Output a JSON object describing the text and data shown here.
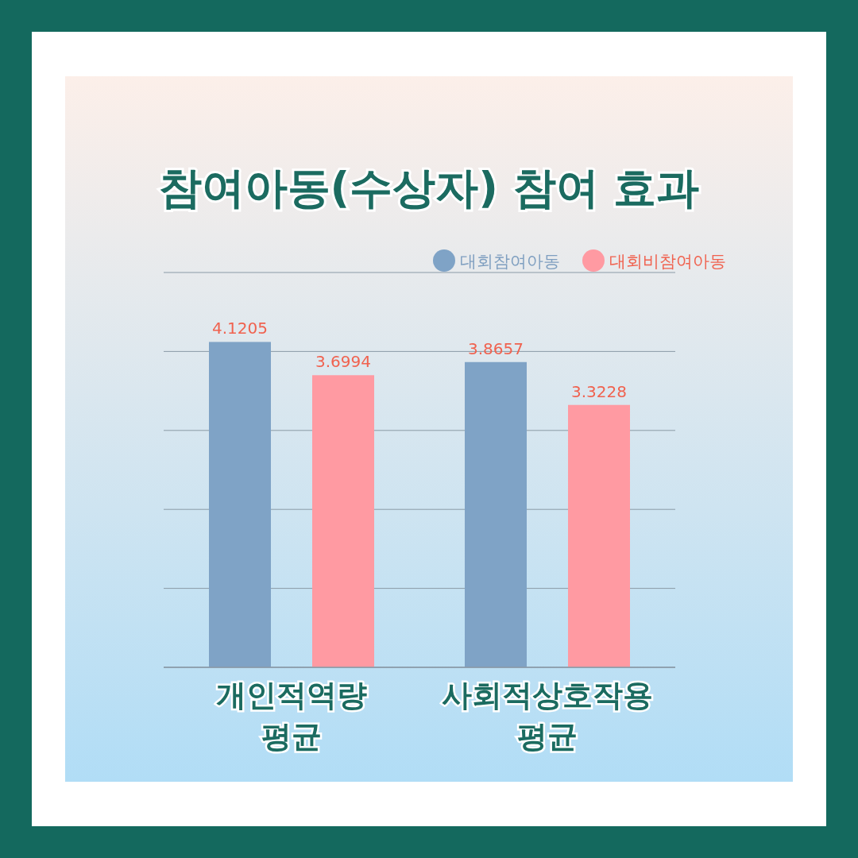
{
  "chart_data": {
    "type": "bar",
    "title": "참여아동(수상자) 참여 효과",
    "categories": [
      "개인적역량\n평균",
      "사회적상호작용\n평균"
    ],
    "series": [
      {
        "name": "대회참여아동",
        "color": "#7fa3c6",
        "values": [
          4.1205,
          3.8657
        ]
      },
      {
        "name": "대회비참여아동",
        "color": "#ff9aa2",
        "values": [
          3.6994,
          3.3228
        ]
      }
    ],
    "ylim": [
      0,
      5
    ],
    "yticks": [
      {
        "value": 0,
        "label": null
      },
      {
        "value": 1,
        "label": null
      },
      {
        "value": 2,
        "label": null
      },
      {
        "value": 3,
        "label": null
      },
      {
        "value": 4,
        "label": null
      },
      {
        "value": 5,
        "label": null
      }
    ],
    "tick_labels": "x",
    "grid": "y",
    "legend": "top right",
    "data_labels": true
  }
}
